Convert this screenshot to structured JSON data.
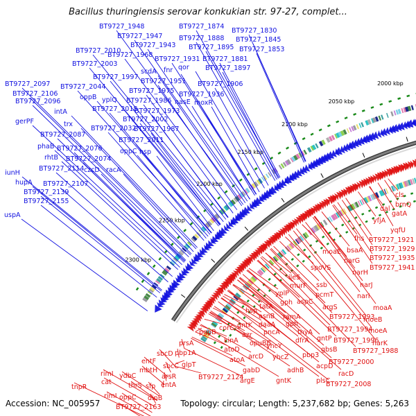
{
  "title": "Bacillus thuringiensis serovar konkukian str. 97-27, complet...",
  "footer": {
    "accession": "Accession: NC_005957",
    "topology": "Topology: circular; Length: 5,237,682 bp; Genes: 5,263"
  },
  "colors": {
    "forward_genes": "#1010e0",
    "reverse_genes": "#e01010",
    "backbone": "#808080",
    "ticks": "#1a8a1a"
  },
  "scale_ticks": [
    "1850 kbp",
    "1900 kbp",
    "1950 kbp",
    "2000 kbp",
    "2050 kbp",
    "2100 kbp",
    "2150 kbp",
    "2200 kbp",
    "2250 kbp",
    "2300 kbp"
  ],
  "forward_labels": [
    "BT9727_1948",
    "BT9727_1874",
    "BT9727_1830",
    "BT9727_1947",
    "BT9727_1888",
    "BT9727_1845",
    "BT9727_1943",
    "BT9727_1895",
    "BT9727_1853",
    "BT9727_2010",
    "BT9727_1968",
    "BT9727_1931",
    "BT9727_1881",
    "BT9727_2003",
    "qor",
    "BT9727_1897",
    "scdA",
    "fnr",
    "BT9727_1997",
    "BT9727_1951",
    "BT9727_1906",
    "BT9727_2097",
    "BT9727_2044",
    "BT9727_1975",
    "BT9727_1936",
    "BT9727_2106",
    "oppB",
    "yplQ",
    "BT9727_1986",
    "nasE",
    "moxR",
    "BT9727_2096",
    "BT9727_2018",
    "BT9727_1973",
    "intA",
    "BT9727_2002",
    "gerPF",
    "trx",
    "BT9727_2032",
    "BT9727_1987",
    "BT9727_2087",
    "BT9727_2011",
    "phaB",
    "BT9727_2076",
    "oppC",
    "hsp",
    "rhtB",
    "BT9727_2074",
    "BT9727_2114",
    "czcD",
    "racA",
    "iunH",
    "hupA",
    "BT9727_2107",
    "BT9727_2139",
    "BT9727_2155",
    "uspA"
  ],
  "reverse_labels": [
    "cls",
    "brnQ",
    "gatA",
    "dal",
    "yfjA",
    "yqfU",
    "fhs",
    "BT9727_1921",
    "bsaA",
    "BT9727_1929",
    "moaE",
    "narG",
    "BT9727_1935",
    "BT9727_1941",
    "narH",
    "spoVS",
    "ileS",
    "ssb",
    "narJ",
    "murF",
    "yplP",
    "pcmT",
    "narI",
    "gph",
    "aspC",
    "moaA",
    "argS",
    "tatA",
    "hsp",
    "ramA",
    "BT9727_1993",
    "moeB",
    "asnB",
    "gph",
    "daaA",
    "thyA",
    "BT9727_1994",
    "moeA",
    "corC",
    "gntK",
    "pncA",
    "dfrA",
    "gntP",
    "BT9727_1996",
    "azr",
    "opuBB",
    "gbsB",
    "narK",
    "pgpB",
    "kinA",
    "yhcY",
    "pbp3",
    "BT9727_1988",
    "atoD",
    "arcD",
    "yhcZ",
    "BT9727_2000",
    "prsA",
    "atoA",
    "acpD",
    "racD",
    "pbp1A",
    "gabD",
    "adhB",
    "sbcD",
    "glpT",
    "entF",
    "sbcC",
    "BT9727_2124",
    "argE",
    "gntK",
    "plsC",
    "BT9727_2008",
    "mbtH",
    "arsR",
    "rimI",
    "ydbC",
    "entA",
    "cat",
    "thrS",
    "sfp",
    "tnpR",
    "rimI",
    "oppC",
    "dinB",
    "BT9727_2163"
  ]
}
